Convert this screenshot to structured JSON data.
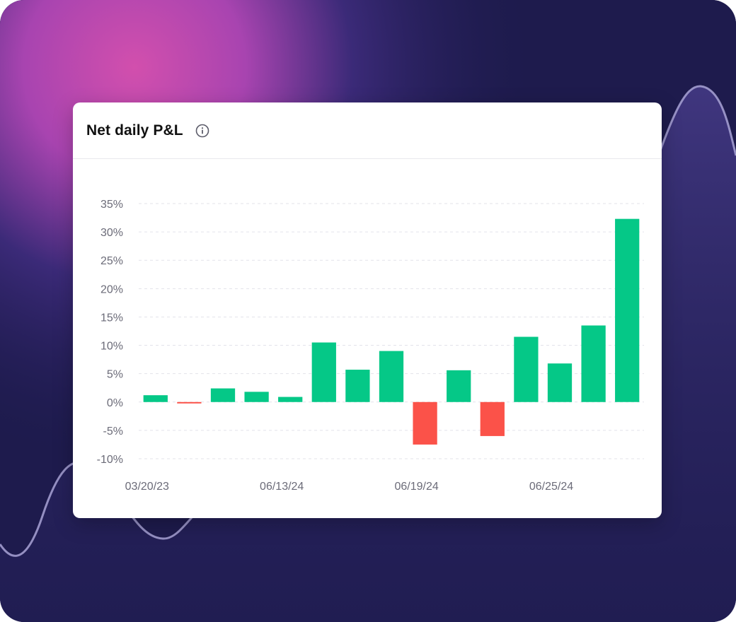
{
  "card": {
    "title": "Net daily P&L",
    "info_icon": "info-circle-icon"
  },
  "colors": {
    "positive": "#05c887",
    "negative": "#fb5249",
    "grid": "#e3e3ea",
    "tick_text": "#6b6b78",
    "background_dark": "#1d1a4a",
    "background_glow": "#c64aa8"
  },
  "chart_data": {
    "type": "bar",
    "title": "Net daily P&L",
    "xlabel": "",
    "ylabel": "",
    "ylim": [
      -10,
      35
    ],
    "y_ticks": [
      35,
      30,
      25,
      20,
      15,
      10,
      5,
      0,
      -5,
      -10
    ],
    "y_tick_labels": [
      "35%",
      "30%",
      "25%",
      "20%",
      "15%",
      "10%",
      "5%",
      "0%",
      "-5%",
      "-10%"
    ],
    "x_tick_labels": [
      {
        "bar_index": 0,
        "label": "03/20/23"
      },
      {
        "bar_index": 4,
        "label": "06/13/24"
      },
      {
        "bar_index": 8,
        "label": "06/19/24"
      },
      {
        "bar_index": 12,
        "label": "06/25/24"
      }
    ],
    "values": [
      1.2,
      -0.2,
      2.4,
      1.8,
      0.9,
      10.5,
      5.7,
      9.0,
      -7.5,
      5.6,
      -6.0,
      11.5,
      6.8,
      13.5,
      32.3
    ],
    "grid": true,
    "grid_style": "dashed",
    "legend": "none"
  }
}
